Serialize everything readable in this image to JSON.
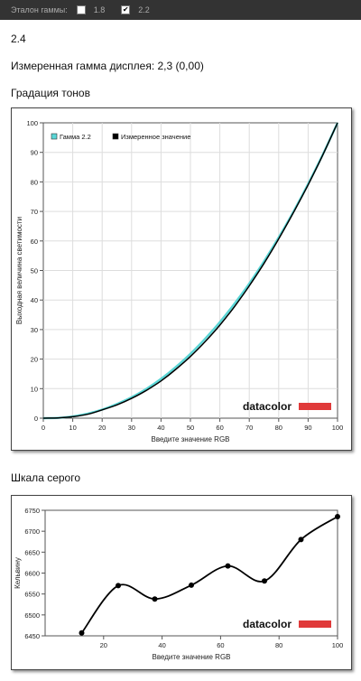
{
  "topbar": {
    "label": "Эталон гаммы:",
    "options": [
      {
        "text": "1.8",
        "checked": false
      },
      {
        "text": "2.2",
        "checked": true
      }
    ]
  },
  "value_line": "2.4",
  "measured_line": "Измеренная гамма дисплея: 2,3 (0,00)",
  "section1_title": "Градация тонов",
  "section2_title": "Шкала серого",
  "logo_text": "datacolor",
  "colors": {
    "gamma": "#5ad6d6",
    "measured": "#000000",
    "logo_bar": "#e03a3a"
  },
  "chart_data": [
    {
      "type": "line",
      "xlabel": "Введите значение RGB",
      "ylabel": "Выходная величина светимости",
      "xlim": [
        0,
        100
      ],
      "ylim": [
        0,
        100
      ],
      "xticks": [
        0,
        10,
        20,
        30,
        40,
        50,
        60,
        70,
        80,
        90,
        100
      ],
      "yticks": [
        0,
        10,
        20,
        30,
        40,
        50,
        60,
        70,
        80,
        90,
        100
      ],
      "legend_position": "top-left",
      "series": [
        {
          "name": "Гамма 2.2",
          "color": "#5ad6d6",
          "x": [
            0,
            5,
            10,
            15,
            20,
            25,
            30,
            35,
            40,
            45,
            50,
            55,
            60,
            65,
            70,
            75,
            80,
            85,
            90,
            95,
            100
          ],
          "y": [
            0,
            0.1,
            0.6,
            1.5,
            2.9,
            4.8,
            7.1,
            9.9,
            13.3,
            17.3,
            21.8,
            26.9,
            32.5,
            38.8,
            45.6,
            53.1,
            61.2,
            69.9,
            79.3,
            89.3,
            100
          ]
        },
        {
          "name": "Измеренное значение",
          "color": "#000000",
          "x": [
            0,
            5,
            10,
            15,
            20,
            25,
            30,
            35,
            40,
            45,
            50,
            55,
            60,
            65,
            70,
            75,
            80,
            85,
            90,
            95,
            100
          ],
          "y": [
            0,
            0.1,
            0.5,
            1.3,
            2.8,
            4.5,
            6.7,
            9.4,
            12.6,
            16.5,
            20.9,
            25.9,
            31.5,
            37.8,
            44.8,
            52.4,
            60.7,
            69.6,
            79.0,
            89.1,
            100
          ]
        }
      ]
    },
    {
      "type": "line",
      "xlabel": "Введите значение RGB",
      "ylabel": "Кельвину",
      "xlim": [
        0,
        100
      ],
      "ylim": [
        6450,
        6750
      ],
      "xticks": [
        20,
        40,
        60,
        80,
        100
      ],
      "yticks": [
        6450,
        6500,
        6550,
        6600,
        6650,
        6700,
        6750
      ],
      "series": [
        {
          "color": "#000000",
          "x": [
            12.5,
            25,
            37.5,
            50,
            62.5,
            75,
            87.5,
            100
          ],
          "y": [
            6457,
            6570,
            6538,
            6571,
            6617,
            6581,
            6680,
            6735
          ]
        }
      ]
    }
  ]
}
